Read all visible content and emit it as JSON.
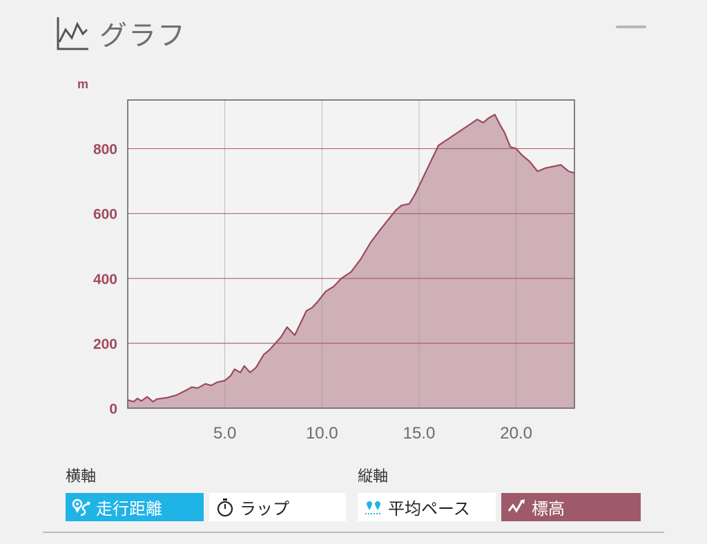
{
  "header": {
    "title": "グラフ"
  },
  "controls": {
    "x_axis_label": "横軸",
    "y_axis_label": "縦軸",
    "x_buttons": [
      {
        "label": "走行距離",
        "icon": "route-icon",
        "selected": true
      },
      {
        "label": "ラップ",
        "icon": "stopwatch-icon",
        "selected": false
      }
    ],
    "y_buttons": [
      {
        "label": "平均ペース",
        "icon": "pace-icon",
        "selected": false
      },
      {
        "label": "標高",
        "icon": "elevation-icon",
        "selected": true
      }
    ]
  },
  "colors": {
    "accent_blue": "#1fb3e6",
    "elevation_fill": "#cfb0b8",
    "elevation_line": "#9a4a5e",
    "label_maroon": "#a04b5c"
  },
  "chart_data": {
    "type": "area",
    "y_unit": "m",
    "xlim": [
      0,
      23
    ],
    "ylim": [
      0,
      950
    ],
    "x_ticks": [
      "5.0",
      "10.0",
      "15.0",
      "20.0"
    ],
    "y_ticks": [
      "0",
      "200",
      "400",
      "600",
      "800"
    ],
    "grid": true,
    "series": [
      {
        "x": [
          0,
          0.3,
          0.5,
          0.7,
          1.0,
          1.3,
          1.5,
          2.0,
          2.5,
          3.0,
          3.3,
          3.6,
          4.0,
          4.3,
          4.6,
          5.0,
          5.3,
          5.5,
          5.8,
          6.0,
          6.3,
          6.6,
          7.0,
          7.3,
          7.6,
          7.9,
          8.2,
          8.6,
          9.0,
          9.2,
          9.5,
          9.8,
          10.2,
          10.6,
          11.0,
          11.5,
          12.0,
          12.5,
          13.0,
          13.4,
          13.8,
          14.1,
          14.5,
          14.8,
          15.2,
          15.6,
          16.0,
          16.5,
          17.0,
          17.5,
          18.0,
          18.3,
          18.6,
          18.9,
          19.2,
          19.4,
          19.7,
          20.0,
          20.3,
          20.7,
          21.1,
          21.5,
          21.9,
          22.3,
          22.7,
          23.0
        ],
        "y": [
          25,
          20,
          30,
          22,
          35,
          20,
          28,
          32,
          40,
          55,
          65,
          62,
          75,
          70,
          80,
          85,
          100,
          120,
          110,
          130,
          110,
          125,
          165,
          180,
          200,
          220,
          250,
          225,
          275,
          300,
          310,
          330,
          360,
          375,
          400,
          420,
          460,
          510,
          550,
          580,
          610,
          625,
          630,
          660,
          710,
          760,
          810,
          830,
          850,
          870,
          890,
          880,
          895,
          905,
          870,
          850,
          805,
          800,
          780,
          760,
          730,
          740,
          745,
          750,
          730,
          725
        ]
      }
    ]
  }
}
